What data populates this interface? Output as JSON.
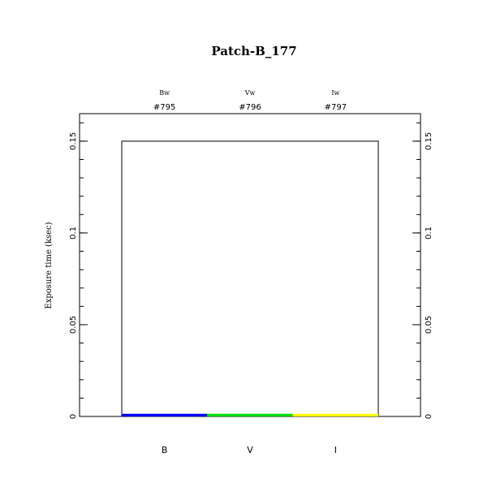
{
  "chart_data": {
    "type": "bar",
    "title": "Patch-B_177",
    "ylabel": "Exposure time (ksec)",
    "xlabel": "",
    "categories": [
      "B",
      "V",
      "I"
    ],
    "filters": [
      "Bw",
      "Vw",
      "Iw"
    ],
    "ids": [
      "#795",
      "#796",
      "#797"
    ],
    "values": [
      0.001,
      0.001,
      0.001
    ],
    "colors": [
      "#0000ff",
      "#00dd00",
      "#ffff00"
    ],
    "outline_value": 0.15,
    "ylim": [
      0,
      0.165
    ],
    "yticks": [
      0,
      0.05,
      0.1,
      0.15
    ],
    "ytick_labels": [
      "0",
      "0.05",
      "0.1",
      "0.15"
    ],
    "grid": false
  }
}
